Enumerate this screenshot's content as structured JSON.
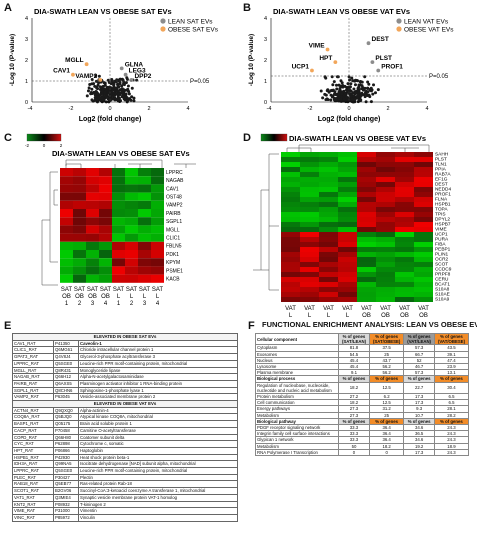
{
  "panelA": {
    "label": "A",
    "title": "DIA-SWATH LEAN VS OBESE SAT EVs",
    "legend": [
      {
        "name": "LEAN SAT EVs",
        "color": "#8c8c8c"
      },
      {
        "name": "OBESE SAT EVs",
        "color": "#f2a65a"
      }
    ],
    "xlabel": "Log2 (fold change)",
    "ylabel": "-Log 10 (P-value)",
    "pval_label": "P=0.05",
    "xticks": [
      "-4",
      "-2",
      "0",
      "2",
      "4"
    ],
    "yticks": [
      "0",
      "1",
      "2",
      "3",
      "4"
    ],
    "genes": [
      {
        "name": "MGLL",
        "x": -1.2,
        "y": 1.8
      },
      {
        "name": "CAV1",
        "x": -1.9,
        "y": 1.3
      },
      {
        "name": "VAMP2",
        "x": -0.5,
        "y": 1.05
      },
      {
        "name": "GLNA",
        "x": 0.6,
        "y": 1.6
      },
      {
        "name": "LEG3",
        "x": 0.8,
        "y": 1.3
      },
      {
        "name": "DPP2",
        "x": 1.1,
        "y": 1.05
      }
    ]
  },
  "panelB": {
    "label": "B",
    "title": "DIA-SWATH LEAN VS OBESE VAT EVs",
    "legend": [
      {
        "name": "LEAN VAT EVs",
        "color": "#8c8c8c"
      },
      {
        "name": "OBESE VAT EVs",
        "color": "#f2a65a"
      }
    ],
    "xlabel": "Log2 (fold change)",
    "ylabel": "-Log 10 (P-value)",
    "pval_label": "P=0.05",
    "xticks": [
      "-4",
      "-2",
      "0",
      "2",
      "4"
    ],
    "yticks": [
      "0",
      "1",
      "2",
      "3",
      "4"
    ],
    "genes": [
      {
        "name": "VIME",
        "x": -1.1,
        "y": 2.5
      },
      {
        "name": "HPT",
        "x": -0.7,
        "y": 1.9
      },
      {
        "name": "UCP1",
        "x": -1.9,
        "y": 1.5
      },
      {
        "name": "DEST",
        "x": 1.0,
        "y": 2.8
      },
      {
        "name": "PLST",
        "x": 1.2,
        "y": 1.9
      },
      {
        "name": "PROF1",
        "x": 1.5,
        "y": 1.5
      }
    ]
  },
  "panelC": {
    "label": "C",
    "title": "DIA-SWATH LEAN VS OBESE SAT EVs",
    "scale": [
      "-2",
      "0",
      "2"
    ],
    "rows": [
      "LPPRC",
      "NAGAB",
      "CAV1",
      "OST48",
      "VAMP2",
      "PAIRB",
      "SGPL1",
      "MGLL",
      "CLIC1",
      "FBLN5",
      "PDK1",
      "KPYM",
      "PSME1",
      "KACB"
    ],
    "cols": [
      "SAT OB 1",
      "SAT OB 2",
      "SAT OB 3",
      "SAT OB 4",
      "SAT L 1",
      "SAT L 2",
      "SAT L 3",
      "SAT L 4"
    ]
  },
  "panelD": {
    "label": "D",
    "title": "DIA-SWATH LEAN VS OBESE VAT EVs",
    "rows": [
      "SAHH",
      "PLST",
      "TLN1",
      "PPIA",
      "RAB7A",
      "EF1G",
      "DEST",
      "NEDD4",
      "PROF1",
      "FLNA",
      "HSPB1",
      "TOPA",
      "TPIS",
      "DPYL2",
      "HSPB7",
      "VIME",
      "UCP1",
      "PURA",
      "FIBA",
      "PEBP1",
      "PLIN1",
      "OCR2",
      "SCOT",
      "CCDC9",
      "PRPF8",
      "CERU",
      "BCAT1",
      "S10A8",
      "S10AE",
      "S10A9"
    ],
    "cols": [
      "VAT L 1",
      "VAT L 2",
      "VAT L 3",
      "VAT L 4",
      "VAT OB 1",
      "VAT OB 2",
      "VAT OB 3",
      "VAT OB 4"
    ]
  },
  "panelE": {
    "label": "E",
    "section1": "ELEVATED IN OBESE SAT EVs",
    "rows1": [
      [
        "CAV1_RAT",
        "P41350",
        "Caveolin-1"
      ],
      [
        "CLIC1_RAT",
        "Q6MG61",
        "Chloride intracellular channel protein 1"
      ],
      [
        "GPAT3_RAT",
        "Q4V8J4",
        "Glycerol-3-phosphate acyltransferase 3"
      ],
      [
        "LPPRC_RAT",
        "Q5SGE0",
        "Leucine-rich PPR motif-containing protein, mitochondrial"
      ],
      [
        "MGLL_RAT",
        "Q8R431",
        "Monoglyceride lipase"
      ],
      [
        "NAGAB_RAT",
        "Q66H12",
        "Alpha-N-acetylgalactosaminidase"
      ],
      [
        "PAIRB_RAT",
        "Q6AXS5",
        "Plasminogen activator inhibitor 1 RNA-binding protein"
      ],
      [
        "SGPL1_RAT",
        "Q8CHN6",
        "Sphingosine-1-phosphate lyase 1"
      ],
      [
        "VAMP2_RAT",
        "P63045",
        "Vesicle-associated membrane protein 2"
      ]
    ],
    "section2": "ELEVATED IN OBESE VAT EVs",
    "rows2": [
      [
        "ACTN4_RAT",
        "Q9QXQ0",
        "Alpha-actinin-4"
      ],
      [
        "COQ8A_RAT",
        "Q5BJQ0",
        "Atypical kinase COQ8A, mitochondrial"
      ],
      [
        "BASP1_RAT",
        "Q05175",
        "Brain acid soluble protein 1"
      ],
      [
        "CACP_RAT",
        "P70458",
        "Carnitine O-acetyltransferase"
      ],
      [
        "COPD_RAT",
        "Q66H80",
        "Coatomer subunit delta"
      ],
      [
        "CYC_RAT",
        "P62898",
        "Cytochrome c, somatic"
      ],
      [
        "HPT_RAT",
        "P06866",
        "Haptoglobin"
      ],
      [
        "HSPB1_RAT",
        "P42930",
        "Heat shock protein beta-1"
      ],
      [
        "IDH3A_RAT",
        "Q99NA5",
        "Isocitrate dehydrogenase [NAD] subunit alpha, mitochondrial"
      ],
      [
        "LPPRC_RAT",
        "Q5SGE0",
        "Leucine-rich PPR motif-containing protein, mitochondrial"
      ],
      [
        "PLEC_RAT",
        "P30427",
        "Plectin"
      ],
      [
        "RAB18_RAT",
        "Q5EB77",
        "Ras-related protein Rab-18"
      ],
      [
        "SCOT1_RAT",
        "B2GV06",
        "Succinyl-CoA:3-ketoacid coenzyme A transferase 1, mitochondrial"
      ],
      [
        "VAT1_RAT",
        "Q3MIE4",
        "Synaptic vesicle membrane protein VAT-1 homolog"
      ],
      [
        "KNT2_RAT",
        "P08932",
        "T-kininogen 2"
      ],
      [
        "VIME_RAT",
        "P31000",
        "Vimentin"
      ],
      [
        "VINC_RAT",
        "P85972",
        "Vinculin"
      ]
    ]
  },
  "panelF": {
    "label": "F",
    "title": "FUNCTIONAL ENRICHMENT ANALYSIS: LEAN VS OBESE EVs",
    "sections": [
      {
        "name": "Cellular component",
        "headers": [
          "% of genes (SAT/LEAN)",
          "% of genes (SAT/OBESE)",
          "% of genes (VAT/LEAN)",
          "% of genes (VAT/OBESE)"
        ],
        "rows": [
          [
            "Cytoplasm",
            "81.8",
            "37.5",
            "57.3",
            "43.5"
          ],
          [
            "Exosomes",
            "54.5",
            "25",
            "66.7",
            "39.1"
          ],
          [
            "Nucleus",
            "45.4",
            "43.7",
            "52",
            "47.4"
          ],
          [
            "Lysosome",
            "45.4",
            "56.2",
            "46.7",
            "23.9"
          ],
          [
            "Plasma membrane",
            "9.1",
            "56.2",
            "57.3",
            "13.1"
          ]
        ]
      },
      {
        "name": "Biological process",
        "headers": [
          "% of genes",
          "% of genes",
          "% of genes",
          "% of genes"
        ],
        "rows": [
          [
            "Regulation of nucleobase, nucleoside, nucleotide and nucleic acid metabolism",
            "18.2",
            "12.5",
            "22.7",
            "30.4"
          ],
          [
            "Protein metabolism",
            "27.2",
            "6.2",
            "17.3",
            "6.5"
          ],
          [
            "Cell communication",
            "18.2",
            "12.5",
            "17.3",
            "6.5"
          ],
          [
            "Energy pathways",
            "27.3",
            "31.2",
            "9.3",
            "28.1"
          ],
          [
            "Metabolism",
            "27.3",
            "25",
            "10.7",
            "28.2"
          ]
        ]
      },
      {
        "name": "Biological pathway",
        "headers": [
          "% of genes",
          "% of genes",
          "% of genes",
          "% of genes"
        ],
        "rows": [
          [
            "PDGF receptor signaling network",
            "33.3",
            "36.4",
            "34.6",
            "24.3"
          ],
          [
            "Integrin family cell surface interactions",
            "33.3",
            "36.4",
            "36.5",
            "24.3"
          ],
          [
            "Glypican 1 network",
            "33.3",
            "36.4",
            "34.6",
            "24.3"
          ],
          [
            "Metabolism",
            "50",
            "18.2",
            "19.2",
            "18.9"
          ],
          [
            "RNA Polymerase I Transcription",
            "0",
            "0",
            "17.3",
            "24.3"
          ]
        ]
      }
    ]
  }
}
